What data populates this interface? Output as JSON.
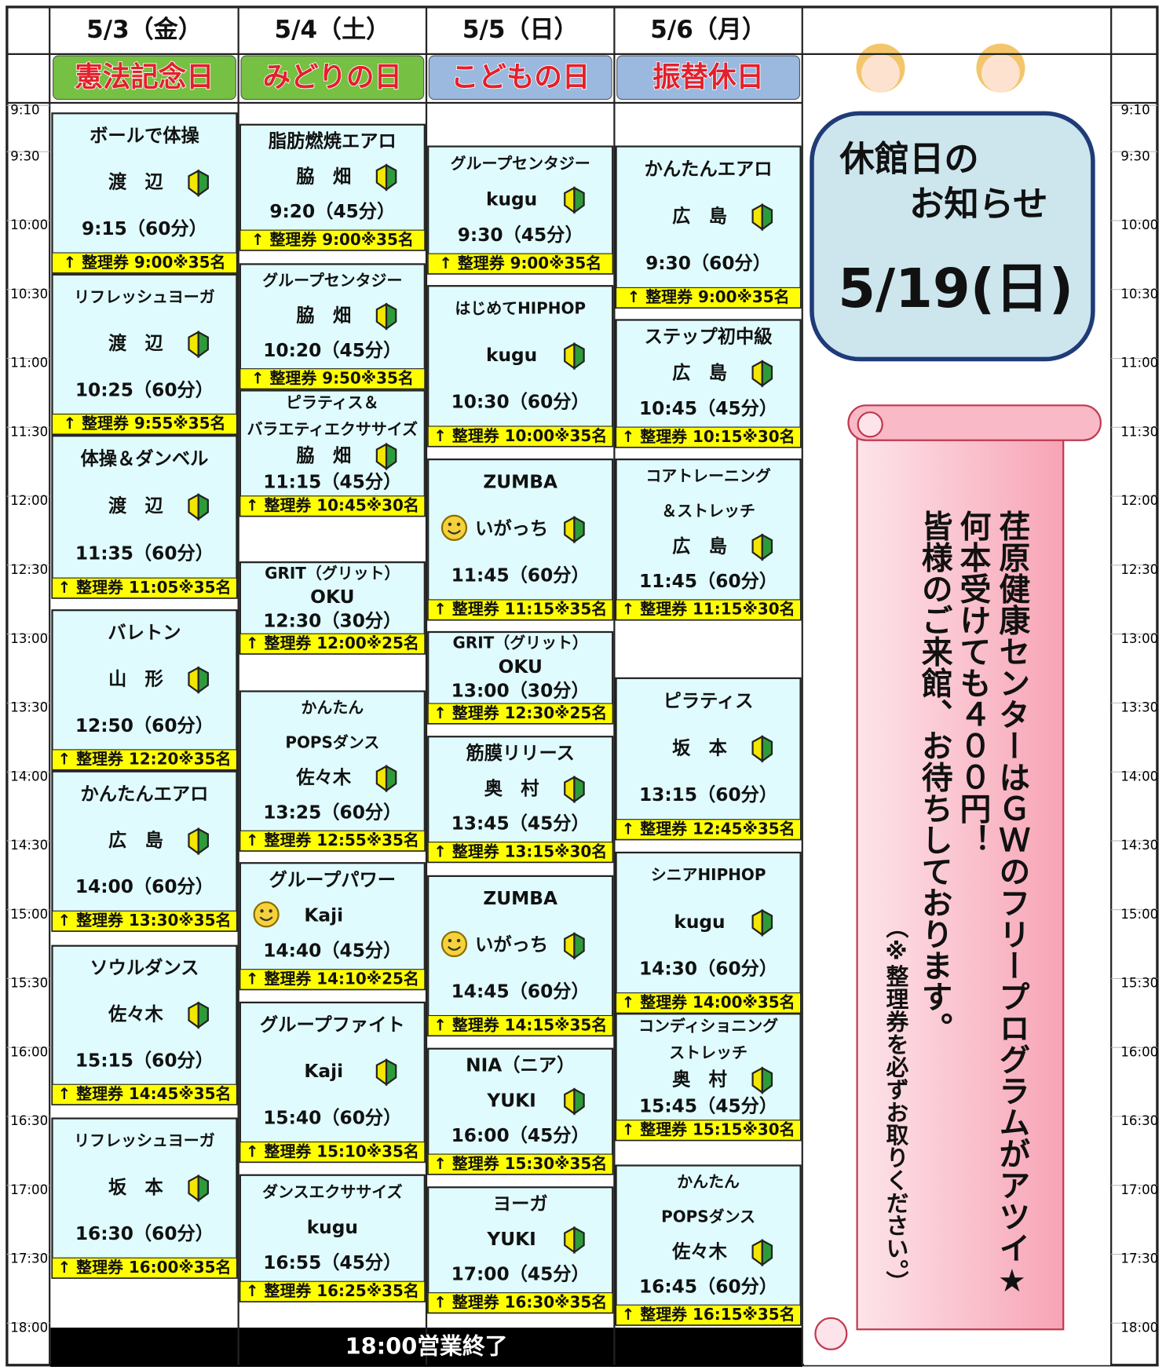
{
  "days": [
    {
      "date": "5/3（金）",
      "holiday": "憲法記念日",
      "classes": [
        {
          "name": [
            "ボールで体操"
          ],
          "instructor": "渡　辺",
          "time": "9:15（60分）",
          "ticket": "↑ 整理券 9:00※35名"
        },
        {
          "name": [
            "リフレッシュヨーガ"
          ],
          "instructor": "渡　辺",
          "time": "10:25（60分）",
          "ticket": "↑ 整理券 9:55※35名"
        },
        {
          "name": [
            "体操＆ダンベル"
          ],
          "instructor": "渡　辺",
          "time": "11:35（60分）",
          "ticket": "↑ 整理券 11:05※35名"
        },
        {
          "name": [
            "バレトン"
          ],
          "instructor": "山　形",
          "time": "12:50（60分）",
          "ticket": "↑ 整理券 12:20※35名"
        },
        {
          "name": [
            "かんたんエアロ"
          ],
          "instructor": "広　島",
          "time": "14:00（60分）",
          "ticket": "↑ 整理券 13:30※35名"
        },
        {
          "name": [
            "ソウルダンス"
          ],
          "instructor": "佐々木",
          "time": "15:15（60分）",
          "ticket": "↑ 整理券 14:45※35名"
        },
        {
          "name": [
            "リフレッシュヨーガ"
          ],
          "instructor": "坂　本",
          "time": "16:30（60分）",
          "ticket": "↑ 整理券 16:00※35名"
        }
      ]
    },
    {
      "date": "5/4（土）",
      "holiday": "みどりの日",
      "classes": [
        {
          "name": [
            "脂肪燃焼エアロ"
          ],
          "instructor": "脇　畑",
          "time": "9:20（45分）",
          "ticket": "↑ 整理券 9:00※35名"
        },
        {
          "name": [
            "グループセンタジー"
          ],
          "instructor": "脇　畑",
          "time": "10:20（45分）",
          "ticket": "↑ 整理券 9:50※35名"
        },
        {
          "name": [
            "ピラティス＆",
            "バラエティエクササイズ"
          ],
          "instructor": "脇　畑",
          "time": "11:15（45分）",
          "ticket": "↑ 整理券 10:45※30名"
        },
        {
          "name": [
            "GRIT（グリット）"
          ],
          "instructor": "OKU",
          "time": "12:30（30分）",
          "ticket": "↑ 整理券 12:00※25名"
        },
        {
          "name": [
            "かんたん",
            "POPSダンス"
          ],
          "instructor": "佐々木",
          "time": "13:25（60分）",
          "ticket": "↑ 整理券 12:55※35名"
        },
        {
          "name": [
            "グループパワー"
          ],
          "instructor": "Kaji",
          "time": "14:40（45分）",
          "ticket": "↑ 整理券 14:10※25名"
        },
        {
          "name": [
            "グループファイト"
          ],
          "instructor": "Kaji",
          "time": "15:40（60分）",
          "ticket": "↑ 整理券 15:10※35名"
        },
        {
          "name": [
            "ダンスエクササイズ"
          ],
          "instructor": "kugu",
          "time": "16:55（45分）",
          "ticket": "↑ 整理券 16:25※35名"
        }
      ]
    },
    {
      "date": "5/5（日）",
      "holiday": "こどもの日",
      "classes": [
        {
          "name": [
            "グループセンタジー"
          ],
          "instructor": "kugu",
          "time": "9:30（45分）",
          "ticket": "↑ 整理券 9:00※35名"
        },
        {
          "name": [
            "はじめてHIPHOP"
          ],
          "instructor": "kugu",
          "time": "10:30（60分）",
          "ticket": "↑ 整理券 10:00※35名"
        },
        {
          "name": [
            "ZUMBA"
          ],
          "instructor": "いがっち",
          "time": "11:45（60分）",
          "ticket": "↑ 整理券 11:15※35名"
        },
        {
          "name": [
            "GRIT（グリット）"
          ],
          "instructor": "OKU",
          "time": "13:00（30分）",
          "ticket": "↑ 整理券 12:30※25名"
        },
        {
          "name": [
            "筋膜リリース"
          ],
          "instructor": "奥　村",
          "time": "13:45（45分）",
          "ticket": "↑ 整理券 13:15※30名"
        },
        {
          "name": [
            "ZUMBA"
          ],
          "instructor": "いがっち",
          "time": "14:45（60分）",
          "ticket": "↑ 整理券 14:15※35名"
        },
        {
          "name": [
            "NIA（ニア）"
          ],
          "instructor": "YUKI",
          "time": "16:00（45分）",
          "ticket": "↑ 整理券 15:30※35名"
        },
        {
          "name": [
            "ヨーガ"
          ],
          "instructor": "YUKI",
          "time": "17:00（45分）",
          "ticket": "↑ 整理券 16:30※35名"
        }
      ]
    },
    {
      "date": "5/6（月）",
      "holiday": "振替休日",
      "classes": [
        {
          "name": [
            "かんたんエアロ"
          ],
          "instructor": "広　島",
          "time": "9:30（60分）",
          "ticket": "↑ 整理券 9:00※35名"
        },
        {
          "name": [
            "ステップ初中級"
          ],
          "instructor": "広　島",
          "time": "10:45（45分）",
          "ticket": "↑ 整理券 10:15※30名"
        },
        {
          "name": [
            "コアトレーニング",
            "＆ストレッチ"
          ],
          "instructor": "広　島",
          "time": "11:45（60分）",
          "ticket": "↑ 整理券 11:15※30名"
        },
        {
          "name": [
            "ピラティス"
          ],
          "instructor": "坂　本",
          "time": "13:15（60分）",
          "ticket": "↑ 整理券 12:45※35名"
        },
        {
          "name": [
            "シニアHIPHOP"
          ],
          "instructor": "kugu",
          "time": "14:30（60分）",
          "ticket": "↑ 整理券 14:00※35名"
        },
        {
          "name": [
            "コンディショニング",
            "ストレッチ"
          ],
          "instructor": "奥　村",
          "time": "15:45（45分）",
          "ticket": "↑ 整理券 15:15※30名"
        },
        {
          "name": [
            "かんたん",
            "POPSダンス"
          ],
          "instructor": "佐々木",
          "time": "16:45（60分）",
          "ticket": "↑ 整理券 16:15※35名"
        }
      ]
    }
  ],
  "times": [
    "9:10",
    "9:30",
    "10:00",
    "10:30",
    "11:00",
    "11:30",
    "12:00",
    "12:30",
    "13:00",
    "13:30",
    "14:00",
    "14:30",
    "15:00",
    "15:30",
    "16:00",
    "16:30",
    "17:00",
    "17:30",
    "18:00"
  ],
  "closing": "18:00営業終了",
  "notice": {
    "title": [
      "休館日の",
      "お知らせ"
    ],
    "date": "5/19(日)"
  },
  "scroll": [
    "荏原健康センターはＧＷのフリープログラムがアツイ★",
    "何本受けても４００円！",
    "皆様のご来館、お待ちしております。",
    "（※整理券を必ずお取りください。）"
  ]
}
